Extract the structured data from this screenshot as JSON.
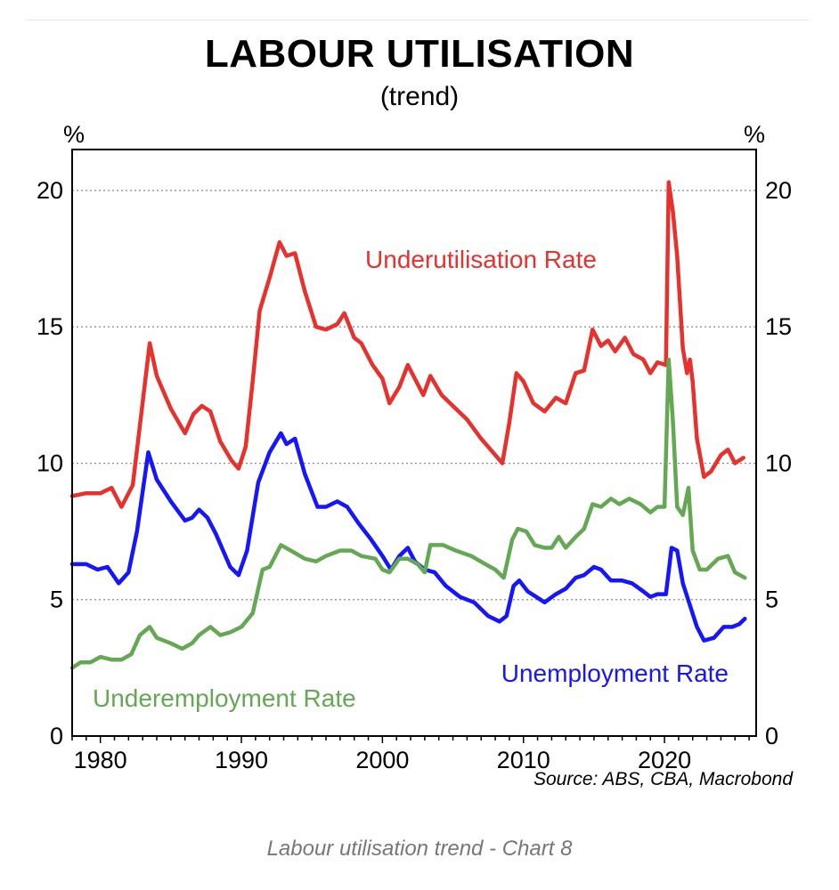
{
  "title": "LABOUR UTILISATION",
  "subtitle": "(trend)",
  "source": "Source: ABS, CBA, Macrobond",
  "caption": "Labour utilisation trend - Chart 8",
  "chart_data": {
    "type": "line",
    "title": "LABOUR UTILISATION",
    "subtitle": "(trend)",
    "y_unit_left": "%",
    "y_unit_right": "%",
    "xlim": [
      1978,
      2026.5
    ],
    "ylim": [
      0,
      21.5
    ],
    "x_ticks": [
      1980,
      1990,
      2000,
      2010,
      2020
    ],
    "y_ticks": [
      0,
      5,
      10,
      15,
      20
    ],
    "grid": "horizontal dotted",
    "series": [
      {
        "name": "Underutilisation Rate",
        "color": "#e8302c",
        "label_position": "upper-middle",
        "points": [
          [
            1978.0,
            8.8
          ],
          [
            1979.0,
            8.9
          ],
          [
            1980.0,
            8.9
          ],
          [
            1980.8,
            9.1
          ],
          [
            1981.5,
            8.4
          ],
          [
            1982.3,
            9.2
          ],
          [
            1982.9,
            11.8
          ],
          [
            1983.5,
            14.4
          ],
          [
            1984.0,
            13.2
          ],
          [
            1985.0,
            12.0
          ],
          [
            1986.0,
            11.1
          ],
          [
            1986.6,
            11.8
          ],
          [
            1987.2,
            12.1
          ],
          [
            1987.8,
            11.9
          ],
          [
            1988.5,
            10.8
          ],
          [
            1989.3,
            10.1
          ],
          [
            1989.8,
            9.8
          ],
          [
            1990.3,
            10.6
          ],
          [
            1990.8,
            13.0
          ],
          [
            1991.3,
            15.6
          ],
          [
            1992.0,
            16.8
          ],
          [
            1992.7,
            18.1
          ],
          [
            1993.2,
            17.6
          ],
          [
            1993.8,
            17.7
          ],
          [
            1994.5,
            16.3
          ],
          [
            1995.3,
            15.0
          ],
          [
            1996.0,
            14.9
          ],
          [
            1996.8,
            15.1
          ],
          [
            1997.3,
            15.5
          ],
          [
            1998.0,
            14.6
          ],
          [
            1998.5,
            14.4
          ],
          [
            1999.3,
            13.6
          ],
          [
            2000.0,
            13.1
          ],
          [
            2000.5,
            12.2
          ],
          [
            2001.2,
            12.8
          ],
          [
            2001.8,
            13.6
          ],
          [
            2002.3,
            13.1
          ],
          [
            2002.9,
            12.5
          ],
          [
            2003.4,
            13.2
          ],
          [
            2004.2,
            12.5
          ],
          [
            2005.0,
            12.1
          ],
          [
            2006.0,
            11.6
          ],
          [
            2007.0,
            10.9
          ],
          [
            2008.0,
            10.3
          ],
          [
            2008.5,
            10.0
          ],
          [
            2009.0,
            11.5
          ],
          [
            2009.5,
            13.3
          ],
          [
            2010.0,
            13.0
          ],
          [
            2010.7,
            12.2
          ],
          [
            2011.5,
            11.9
          ],
          [
            2012.3,
            12.4
          ],
          [
            2013.0,
            12.2
          ],
          [
            2013.7,
            13.3
          ],
          [
            2014.3,
            13.4
          ],
          [
            2014.9,
            14.9
          ],
          [
            2015.5,
            14.3
          ],
          [
            2016.0,
            14.5
          ],
          [
            2016.5,
            14.1
          ],
          [
            2017.2,
            14.6
          ],
          [
            2017.8,
            14.0
          ],
          [
            2018.5,
            13.8
          ],
          [
            2019.0,
            13.3
          ],
          [
            2019.5,
            13.7
          ],
          [
            2020.1,
            13.6
          ],
          [
            2020.3,
            20.3
          ],
          [
            2020.6,
            19.2
          ],
          [
            2020.9,
            17.6
          ],
          [
            2021.3,
            14.2
          ],
          [
            2021.6,
            13.3
          ],
          [
            2021.8,
            13.8
          ],
          [
            2022.0,
            13.0
          ],
          [
            2022.3,
            10.9
          ],
          [
            2022.8,
            9.5
          ],
          [
            2023.3,
            9.7
          ],
          [
            2024.0,
            10.3
          ],
          [
            2024.5,
            10.5
          ],
          [
            2025.0,
            10.0
          ],
          [
            2025.6,
            10.2
          ]
        ]
      },
      {
        "name": "Unemployment Rate",
        "color": "#1515ff",
        "label_position": "lower-right",
        "points": [
          [
            1978.0,
            6.3
          ],
          [
            1979.0,
            6.3
          ],
          [
            1979.8,
            6.1
          ],
          [
            1980.5,
            6.2
          ],
          [
            1981.3,
            5.6
          ],
          [
            1982.0,
            6.0
          ],
          [
            1982.6,
            7.5
          ],
          [
            1983.4,
            10.4
          ],
          [
            1984.0,
            9.4
          ],
          [
            1985.0,
            8.6
          ],
          [
            1986.0,
            7.9
          ],
          [
            1986.5,
            8.0
          ],
          [
            1987.0,
            8.3
          ],
          [
            1987.6,
            8.0
          ],
          [
            1988.2,
            7.4
          ],
          [
            1989.2,
            6.2
          ],
          [
            1989.8,
            5.9
          ],
          [
            1990.4,
            6.8
          ],
          [
            1991.2,
            9.3
          ],
          [
            1992.0,
            10.4
          ],
          [
            1992.8,
            11.1
          ],
          [
            1993.2,
            10.7
          ],
          [
            1993.8,
            10.9
          ],
          [
            1994.5,
            9.6
          ],
          [
            1995.4,
            8.4
          ],
          [
            1996.0,
            8.4
          ],
          [
            1996.8,
            8.6
          ],
          [
            1997.5,
            8.4
          ],
          [
            1998.3,
            7.8
          ],
          [
            1999.2,
            7.2
          ],
          [
            2000.0,
            6.6
          ],
          [
            2000.6,
            6.1
          ],
          [
            2001.2,
            6.6
          ],
          [
            2001.8,
            6.9
          ],
          [
            2002.3,
            6.4
          ],
          [
            2003.0,
            6.1
          ],
          [
            2003.7,
            6.0
          ],
          [
            2004.5,
            5.5
          ],
          [
            2005.5,
            5.1
          ],
          [
            2006.5,
            4.9
          ],
          [
            2007.5,
            4.4
          ],
          [
            2008.3,
            4.2
          ],
          [
            2008.8,
            4.4
          ],
          [
            2009.3,
            5.5
          ],
          [
            2009.7,
            5.7
          ],
          [
            2010.3,
            5.3
          ],
          [
            2011.5,
            4.9
          ],
          [
            2012.3,
            5.2
          ],
          [
            2013.0,
            5.4
          ],
          [
            2013.7,
            5.8
          ],
          [
            2014.3,
            5.9
          ],
          [
            2015.0,
            6.2
          ],
          [
            2015.5,
            6.1
          ],
          [
            2016.2,
            5.7
          ],
          [
            2017.0,
            5.7
          ],
          [
            2017.7,
            5.6
          ],
          [
            2018.5,
            5.3
          ],
          [
            2019.0,
            5.1
          ],
          [
            2019.5,
            5.2
          ],
          [
            2020.1,
            5.2
          ],
          [
            2020.5,
            6.9
          ],
          [
            2020.9,
            6.8
          ],
          [
            2021.3,
            5.6
          ],
          [
            2021.8,
            4.8
          ],
          [
            2022.3,
            4.0
          ],
          [
            2022.8,
            3.5
          ],
          [
            2023.5,
            3.6
          ],
          [
            2024.2,
            4.0
          ],
          [
            2024.8,
            4.0
          ],
          [
            2025.3,
            4.1
          ],
          [
            2025.7,
            4.3
          ]
        ]
      },
      {
        "name": "Underemployment Rate",
        "color": "#64a853",
        "label_position": "lower-left",
        "points": [
          [
            1978.0,
            2.5
          ],
          [
            1978.6,
            2.7
          ],
          [
            1979.3,
            2.7
          ],
          [
            1980.0,
            2.9
          ],
          [
            1980.8,
            2.8
          ],
          [
            1981.5,
            2.8
          ],
          [
            1982.2,
            3.0
          ],
          [
            1982.8,
            3.7
          ],
          [
            1983.5,
            4.0
          ],
          [
            1984.0,
            3.6
          ],
          [
            1985.0,
            3.4
          ],
          [
            1985.8,
            3.2
          ],
          [
            1986.5,
            3.4
          ],
          [
            1987.0,
            3.7
          ],
          [
            1987.8,
            4.0
          ],
          [
            1988.5,
            3.7
          ],
          [
            1989.2,
            3.8
          ],
          [
            1990.0,
            4.0
          ],
          [
            1990.8,
            4.5
          ],
          [
            1991.5,
            6.1
          ],
          [
            1992.0,
            6.2
          ],
          [
            1992.8,
            7.0
          ],
          [
            1993.5,
            6.8
          ],
          [
            1994.5,
            6.5
          ],
          [
            1995.3,
            6.4
          ],
          [
            1996.0,
            6.6
          ],
          [
            1997.0,
            6.8
          ],
          [
            1997.8,
            6.8
          ],
          [
            1998.5,
            6.6
          ],
          [
            1999.5,
            6.5
          ],
          [
            2000.0,
            6.1
          ],
          [
            2000.5,
            6.0
          ],
          [
            2001.2,
            6.5
          ],
          [
            2001.8,
            6.5
          ],
          [
            2002.5,
            6.3
          ],
          [
            2003.0,
            6.0
          ],
          [
            2003.4,
            7.0
          ],
          [
            2004.3,
            7.0
          ],
          [
            2005.2,
            6.8
          ],
          [
            2006.3,
            6.6
          ],
          [
            2007.3,
            6.3
          ],
          [
            2008.0,
            6.1
          ],
          [
            2008.6,
            5.8
          ],
          [
            2009.2,
            7.2
          ],
          [
            2009.6,
            7.6
          ],
          [
            2010.2,
            7.5
          ],
          [
            2010.8,
            7.0
          ],
          [
            2011.5,
            6.9
          ],
          [
            2012.0,
            6.9
          ],
          [
            2012.5,
            7.3
          ],
          [
            2013.0,
            6.9
          ],
          [
            2013.7,
            7.3
          ],
          [
            2014.3,
            7.6
          ],
          [
            2014.9,
            8.5
          ],
          [
            2015.5,
            8.4
          ],
          [
            2016.2,
            8.7
          ],
          [
            2016.8,
            8.5
          ],
          [
            2017.5,
            8.7
          ],
          [
            2018.3,
            8.5
          ],
          [
            2019.0,
            8.2
          ],
          [
            2019.5,
            8.4
          ],
          [
            2020.0,
            8.4
          ],
          [
            2020.3,
            13.8
          ],
          [
            2020.6,
            11.5
          ],
          [
            2020.9,
            8.4
          ],
          [
            2021.3,
            8.1
          ],
          [
            2021.7,
            9.1
          ],
          [
            2022.0,
            6.8
          ],
          [
            2022.5,
            6.1
          ],
          [
            2023.0,
            6.1
          ],
          [
            2023.8,
            6.5
          ],
          [
            2024.5,
            6.6
          ],
          [
            2025.0,
            6.0
          ],
          [
            2025.7,
            5.8
          ]
        ]
      }
    ]
  }
}
